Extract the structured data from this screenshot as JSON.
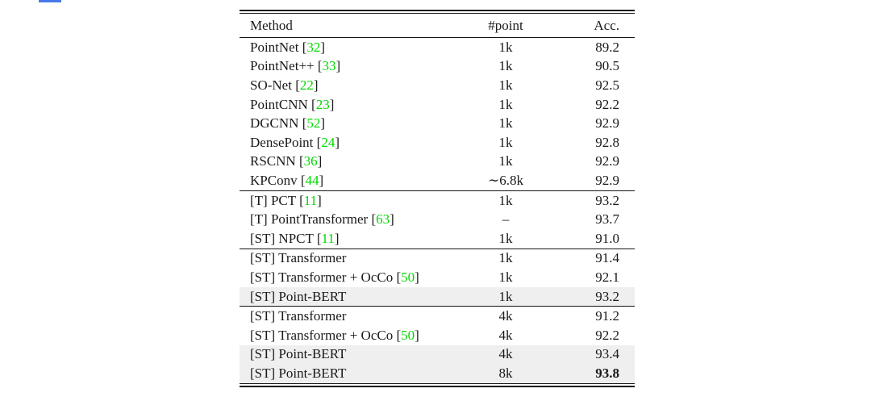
{
  "page": {
    "background": "#FFFFFF"
  },
  "colors": {
    "text": "#1A1A1A",
    "rule": "#141414",
    "citation_green": "#00D800",
    "highlight_row_gray": "#EFEFEF",
    "top_strip_blue": "#4678E8"
  },
  "table": {
    "header": {
      "method": "Method",
      "points": "#point",
      "acc": "Acc."
    },
    "sections": [
      {
        "rows": [
          {
            "method": "PointNet",
            "cite": "32",
            "points": "1k",
            "acc": "89.2",
            "highlight": false,
            "bold_acc": false
          },
          {
            "method": "PointNet++",
            "cite": "33",
            "points": "1k",
            "acc": "90.5",
            "highlight": false,
            "bold_acc": false
          },
          {
            "method": "SO-Net",
            "cite": "22",
            "points": "1k",
            "acc": "92.5",
            "highlight": false,
            "bold_acc": false
          },
          {
            "method": "PointCNN",
            "cite": "23",
            "points": "1k",
            "acc": "92.2",
            "highlight": false,
            "bold_acc": false
          },
          {
            "method": "DGCNN",
            "cite": "52",
            "points": "1k",
            "acc": "92.9",
            "highlight": false,
            "bold_acc": false
          },
          {
            "method": "DensePoint",
            "cite": "24",
            "points": "1k",
            "acc": "92.8",
            "highlight": false,
            "bold_acc": false
          },
          {
            "method": "RSCNN",
            "cite": "36",
            "points": "1k",
            "acc": "92.9",
            "highlight": false,
            "bold_acc": false
          },
          {
            "method": "KPConv",
            "cite": "44",
            "points": "∼6.8k",
            "acc": "92.9",
            "highlight": false,
            "bold_acc": false
          }
        ]
      },
      {
        "rows": [
          {
            "method": "[T] PCT",
            "cite": "11",
            "points": "1k",
            "acc": "93.2",
            "highlight": false,
            "bold_acc": false
          },
          {
            "method": "[T] PointTransformer",
            "cite": "63",
            "points": "–",
            "acc": "93.7",
            "highlight": false,
            "bold_acc": false
          },
          {
            "method": "[ST] NPCT",
            "cite": "11",
            "points": "1k",
            "acc": "91.0",
            "highlight": false,
            "bold_acc": false
          }
        ]
      },
      {
        "rows": [
          {
            "method": "[ST] Transformer",
            "cite": null,
            "points": "1k",
            "acc": "91.4",
            "highlight": false,
            "bold_acc": false
          },
          {
            "method": "[ST] Transformer + OcCo",
            "cite": "50",
            "points": "1k",
            "acc": "92.1",
            "highlight": false,
            "bold_acc": false
          },
          {
            "method": "[ST] Point-BERT",
            "cite": null,
            "points": "1k",
            "acc": "93.2",
            "highlight": true,
            "bold_acc": false
          }
        ]
      },
      {
        "rows": [
          {
            "method": "[ST] Transformer",
            "cite": null,
            "points": "4k",
            "acc": "91.2",
            "highlight": false,
            "bold_acc": false
          },
          {
            "method": "[ST] Transformer + OcCo",
            "cite": "50",
            "points": "4k",
            "acc": "92.2",
            "highlight": false,
            "bold_acc": false
          },
          {
            "method": "[ST] Point-BERT",
            "cite": null,
            "points": "4k",
            "acc": "93.4",
            "highlight": true,
            "bold_acc": false
          },
          {
            "method": "[ST] Point-BERT",
            "cite": null,
            "points": "8k",
            "acc": "93.8",
            "highlight": true,
            "bold_acc": true
          }
        ]
      }
    ]
  }
}
